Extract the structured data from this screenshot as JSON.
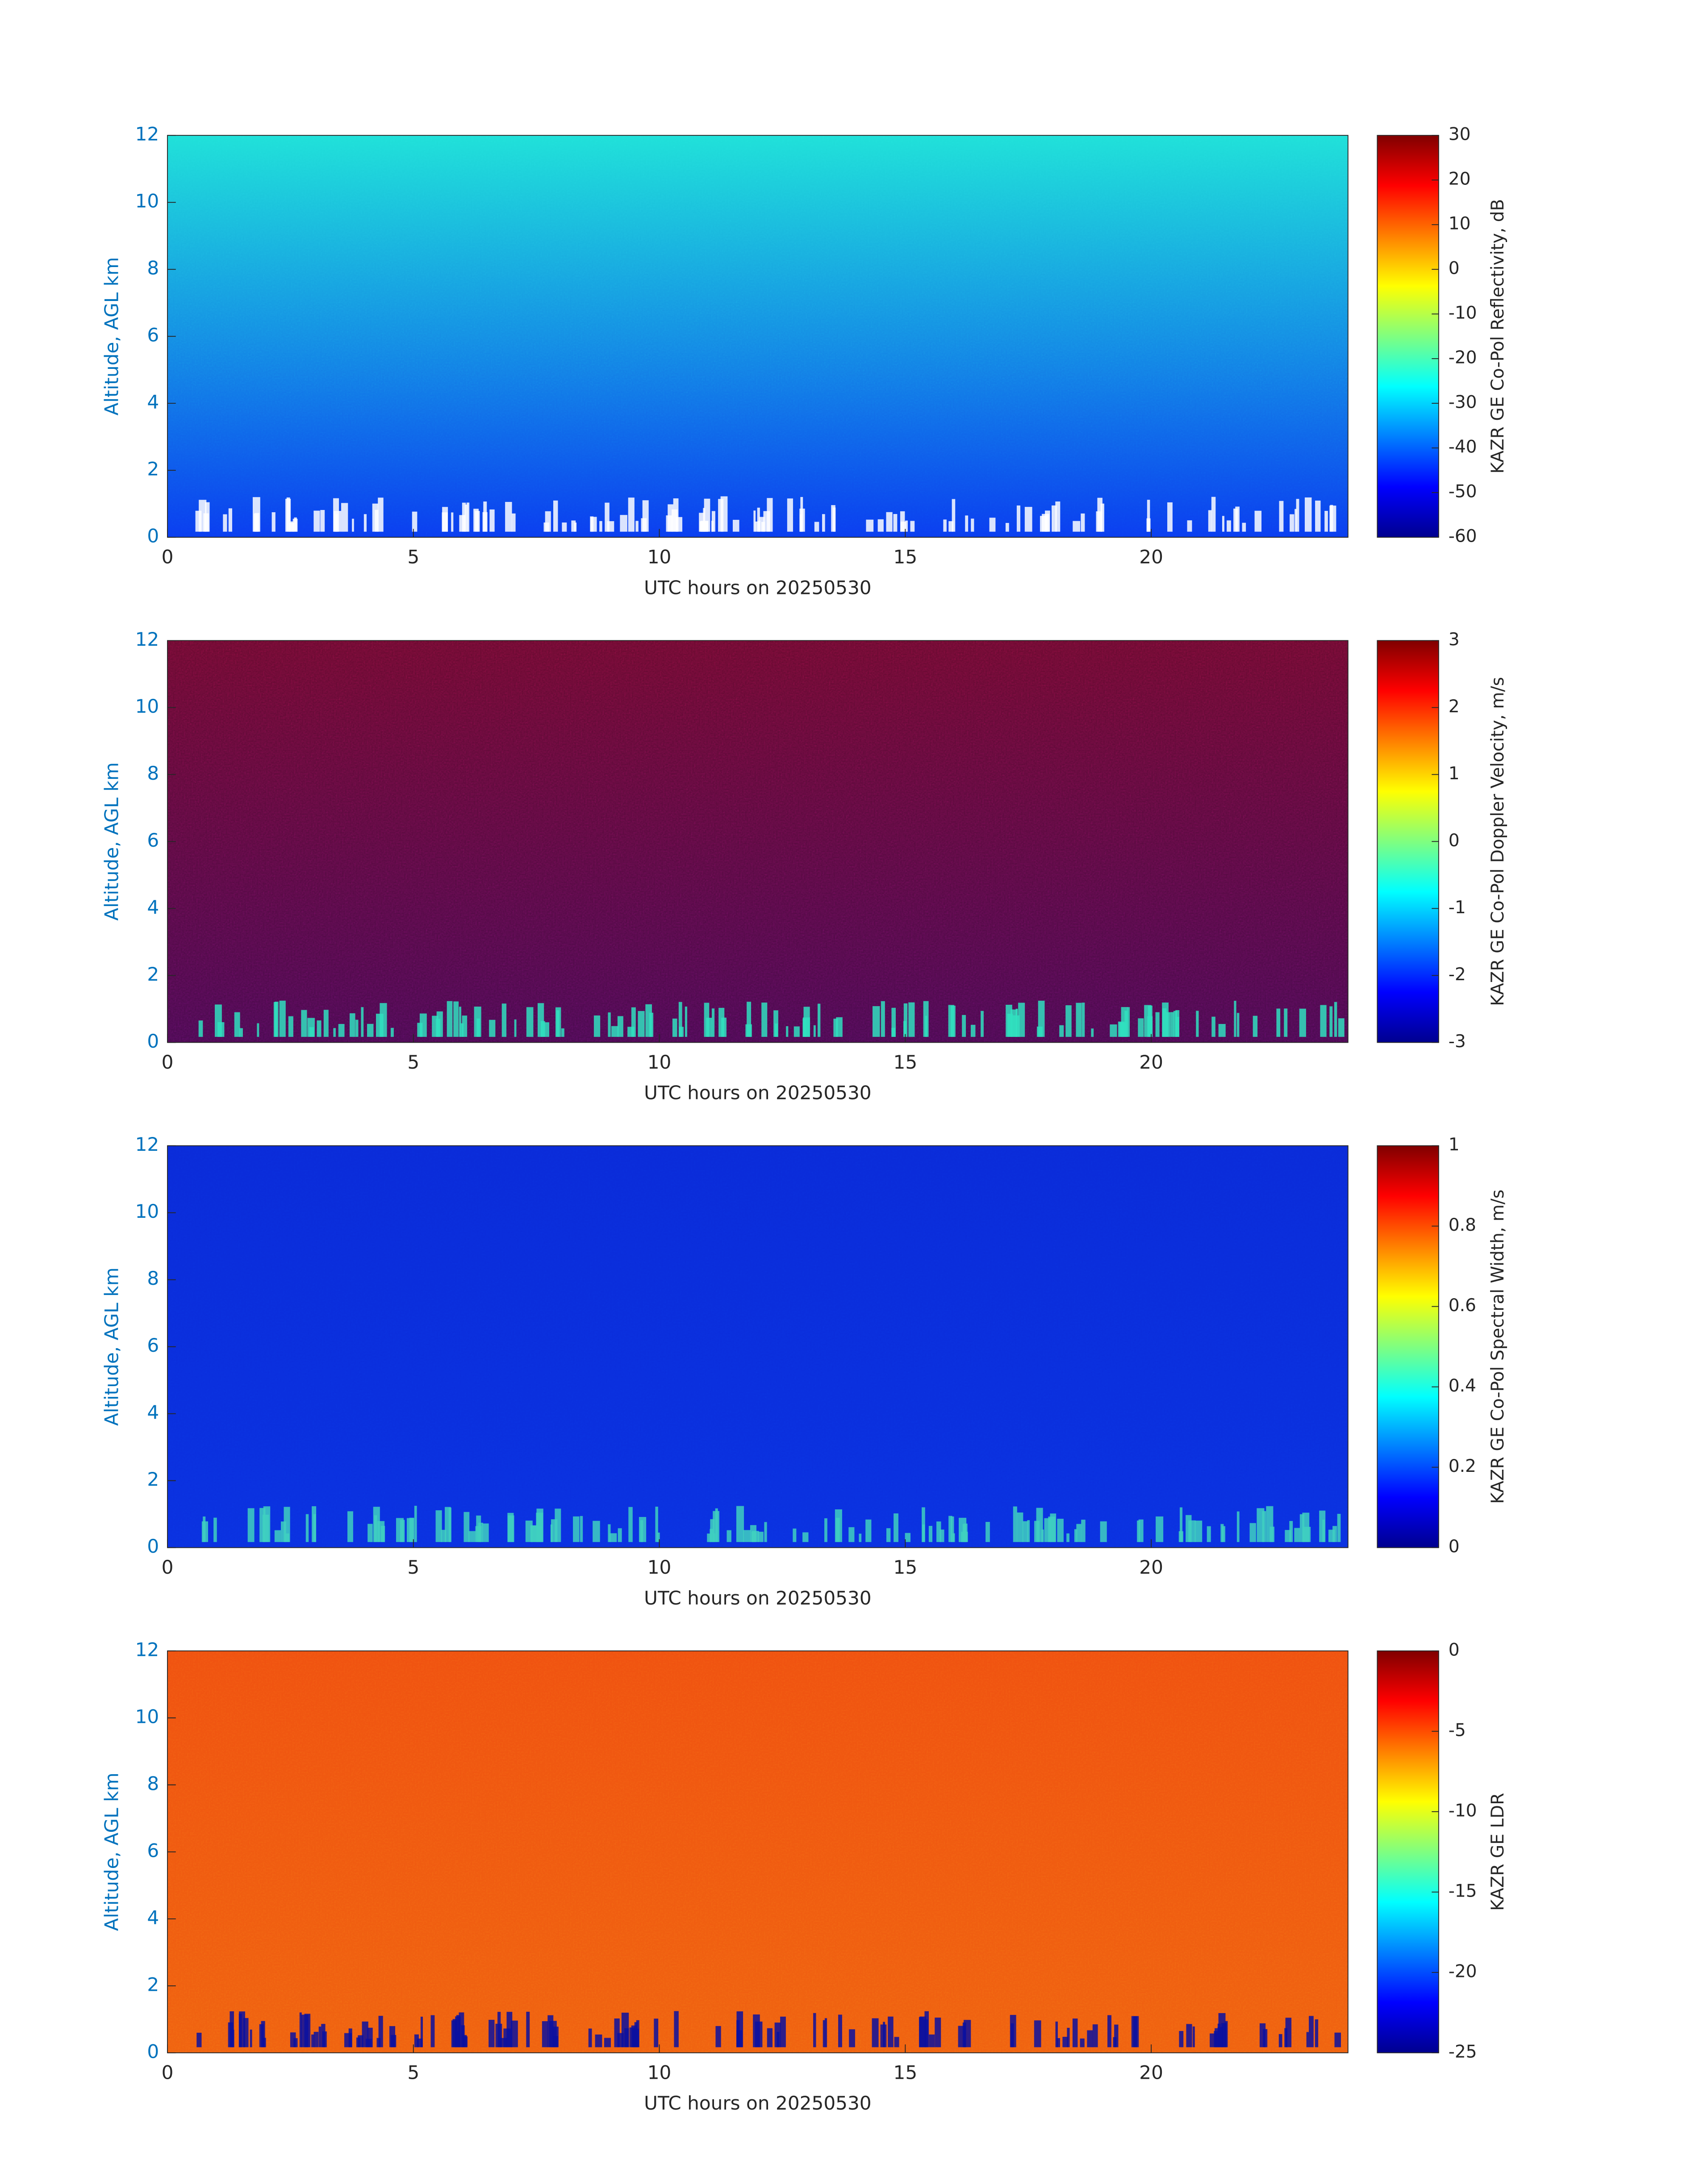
{
  "chart_data": [
    {
      "type": "heatmap",
      "xlabel": "UTC hours on 20250530",
      "ylabel": "Altitude, AGL km",
      "xlim": [
        0,
        24
      ],
      "xticks": [
        0,
        5,
        10,
        15,
        20
      ],
      "ylim": [
        0,
        12
      ],
      "yticks": [
        0,
        2,
        4,
        6,
        8,
        10,
        12
      ],
      "colormap": "jet",
      "colorbar_label": "KAZR GE Co-Pol Reflectivity, dB",
      "clim": [
        -60,
        30
      ],
      "cticks": [
        -60,
        -50,
        -40,
        -30,
        -20,
        -10,
        0,
        10,
        20,
        30
      ]
    },
    {
      "type": "heatmap",
      "xlabel": "UTC hours on 20250530",
      "ylabel": "Altitude, AGL km",
      "xlim": [
        0,
        24
      ],
      "xticks": [
        0,
        5,
        10,
        15,
        20
      ],
      "ylim": [
        0,
        12
      ],
      "yticks": [
        0,
        2,
        4,
        6,
        8,
        10,
        12
      ],
      "colormap": "jet",
      "colorbar_label": "KAZR GE Co-Pol Doppler Velocity, m/s",
      "clim": [
        -3,
        3
      ],
      "cticks": [
        -3,
        -2,
        -1,
        0,
        1,
        2,
        3
      ]
    },
    {
      "type": "heatmap",
      "xlabel": "UTC hours on 20250530",
      "ylabel": "Altitude, AGL km",
      "xlim": [
        0,
        24
      ],
      "xticks": [
        0,
        5,
        10,
        15,
        20
      ],
      "ylim": [
        0,
        12
      ],
      "yticks": [
        0,
        2,
        4,
        6,
        8,
        10,
        12
      ],
      "colormap": "jet",
      "colorbar_label": "KAZR GE Co-Pol Spectral Width, m/s",
      "clim": [
        0,
        1
      ],
      "cticks": [
        0,
        0.2,
        0.4,
        0.6,
        0.8,
        1
      ]
    },
    {
      "type": "heatmap",
      "xlabel": "UTC hours on 20250530",
      "ylabel": "Altitude, AGL km",
      "xlim": [
        0,
        24
      ],
      "xticks": [
        0,
        5,
        10,
        15,
        20
      ],
      "ylim": [
        0,
        12
      ],
      "yticks": [
        0,
        2,
        4,
        6,
        8,
        10,
        12
      ],
      "colormap": "jet",
      "colorbar_label": "KAZR GE LDR",
      "clim": [
        -25,
        0
      ],
      "cticks": [
        -25,
        -20,
        -15,
        -10,
        -5,
        0
      ]
    }
  ]
}
